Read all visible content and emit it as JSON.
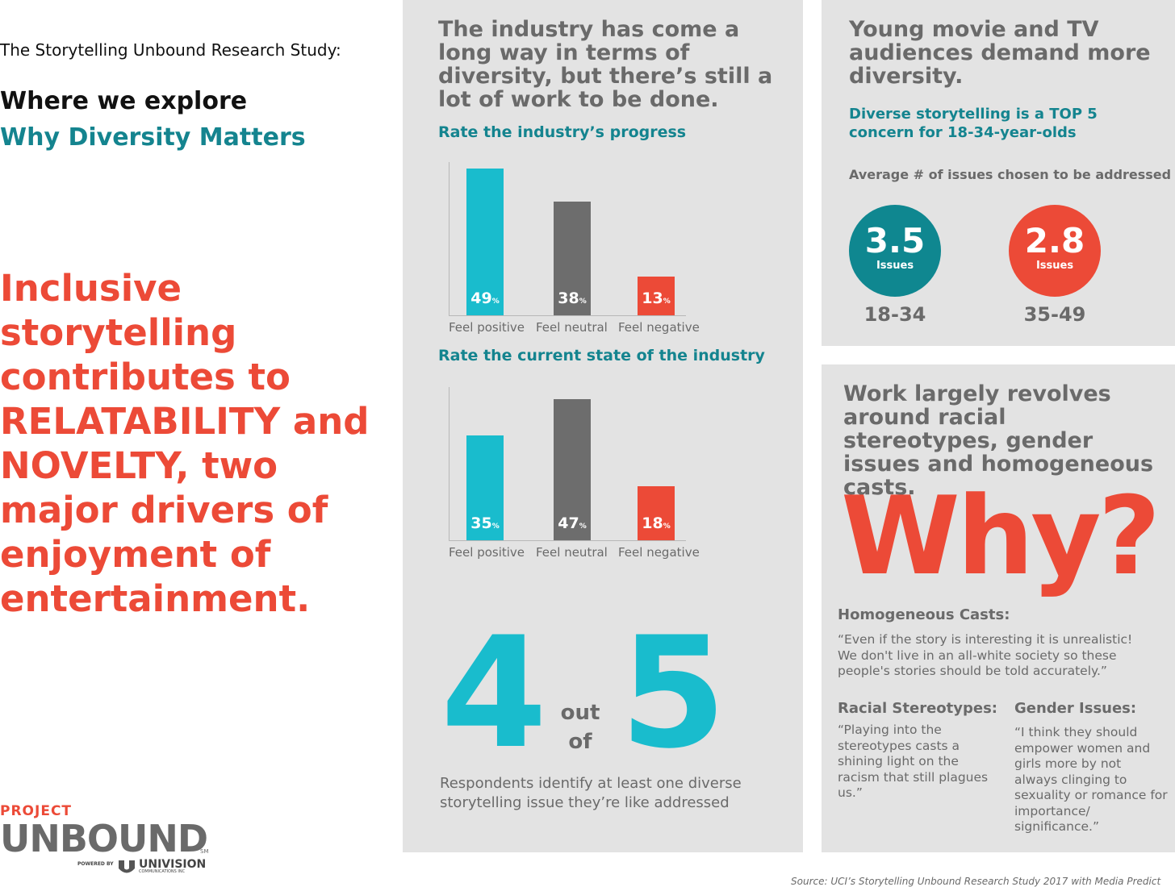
{
  "intro": {
    "line1": "The Storytelling Unbound Research Study:",
    "line2": "Where we explore",
    "line3": "Why Diversity Matters"
  },
  "headline": "Inclusive storytelling contributes to RELATABILITY and NOVELTY, two major drivers of enjoyment of entertainment.",
  "logo": {
    "project": "PROJECT",
    "unbound": "UNBOUND",
    "sm": "SM",
    "powered_by": "POWERED BY",
    "univision": "UNIVISION",
    "communications": "COMMUNICATIONS INC"
  },
  "middle": {
    "heading": "The industry has come a long way in terms of diversity, but there’s still a lot of work to be done.",
    "stat_big_left": "4",
    "stat_outof": "out of",
    "stat_big_right": "5",
    "stat_caption": "Respondents identify at least one diverse storytelling issue they’re like addressed"
  },
  "top_right": {
    "heading": "Young movie and TV audiences demand more diversity.",
    "subheading": "Diverse storytelling is a TOP 5 concern for 18-34-year-olds",
    "avg_label": "Average # of issues chosen to be addressed",
    "circles": [
      {
        "value": "3.5",
        "unit": "Issues",
        "age": "18-34",
        "color": "#0f8790"
      },
      {
        "value": "2.8",
        "unit": "Issues",
        "age": "35-49",
        "color": "#ec4a37"
      }
    ]
  },
  "bottom_right": {
    "heading": "Work largely revolves around racial stereotypes, gender issues and homogeneous casts.",
    "why": "Why?",
    "quotes": {
      "homogeneous_title": "Homogeneous Casts:",
      "homogeneous_text": "“Even if the story is interesting it is unrealistic! We don't live in an all-white society so these people's stories should be told accurately.”",
      "racial_title": "Racial Stereotypes:",
      "racial_text": "“Playing into the stereotypes casts a shining light on the racism that still plagues us.”",
      "gender_title": "Gender Issues:",
      "gender_text": "“I think they should empower women and girls more by not always clinging to sexuality or romance for importance/ significance.”"
    }
  },
  "source": "Source: UCI’s Storytelling Unbound Research Study 2017 with Media Predict",
  "colors": {
    "teal_bar": "#19bccd",
    "gray_bar": "#6d6d6d",
    "red_bar": "#ec4a37"
  },
  "chart_data": [
    {
      "type": "bar",
      "title": "Rate the industry’s progress",
      "categories": [
        "Feel positive",
        "Feel neutral",
        "Feel negative"
      ],
      "values": [
        49,
        38,
        13
      ],
      "unit": "%",
      "ylim": [
        0,
        50
      ]
    },
    {
      "type": "bar",
      "title": "Rate the current state of the industry",
      "categories": [
        "Feel positive",
        "Feel neutral",
        "Feel negative"
      ],
      "values": [
        35,
        47,
        18
      ],
      "unit": "%",
      "ylim": [
        0,
        50
      ]
    }
  ]
}
